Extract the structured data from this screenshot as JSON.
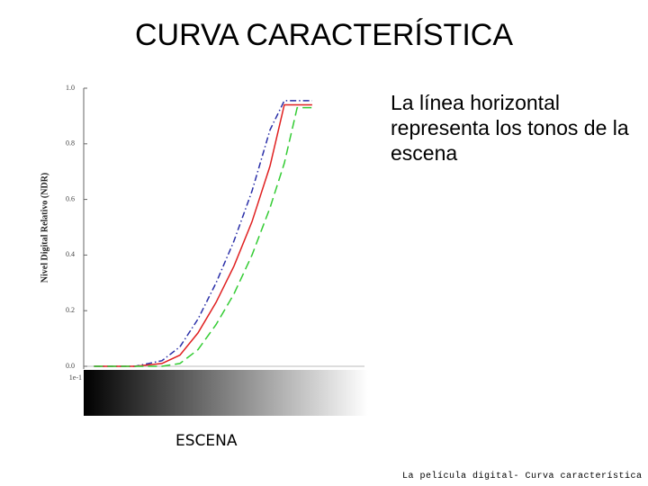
{
  "header": {
    "title": "CURVA CARACTERÍSTICA"
  },
  "note": "La línea horizontal representa los tonos de la escena",
  "scene_label": "ESCENA",
  "footer": "La película digital- Curva característica",
  "chart_data": {
    "type": "line",
    "y_label": "Nivel Digital Relativo (NDR)",
    "x": [
      0.14,
      0.54,
      1.3,
      2.35,
      4.25,
      7.7,
      13.8,
      25,
      45,
      72,
      110,
      180
    ],
    "log_x": true,
    "xlim": [
      0.1,
      1000
    ],
    "xticks": [
      {
        "value": 0.1,
        "label": "1e-1"
      }
    ],
    "ylim": [
      0,
      1
    ],
    "yticks": [
      {
        "value": 0,
        "label": "0.0"
      },
      0.2,
      0.4,
      0.6,
      0.8,
      {
        "value": 1,
        "label": "1.0"
      }
    ],
    "series": [
      {
        "color": "#2a2fa8",
        "dash": "dashdot",
        "values": [
          0,
          0,
          0.02,
          0.07,
          0.17,
          0.3,
          0.45,
          0.63,
          0.85,
          0.955,
          0.955,
          0.955
        ]
      },
      {
        "color": "#e02020",
        "dash": "solid",
        "values": [
          0,
          0,
          0.01,
          0.04,
          0.12,
          0.23,
          0.36,
          0.52,
          0.72,
          0.94,
          0.94,
          0.94
        ]
      },
      {
        "color": "#33cc33",
        "dash": "dashed",
        "values": [
          0,
          0,
          0,
          0.01,
          0.06,
          0.15,
          0.26,
          0.4,
          0.57,
          0.73,
          0.93,
          0.93
        ]
      }
    ]
  }
}
